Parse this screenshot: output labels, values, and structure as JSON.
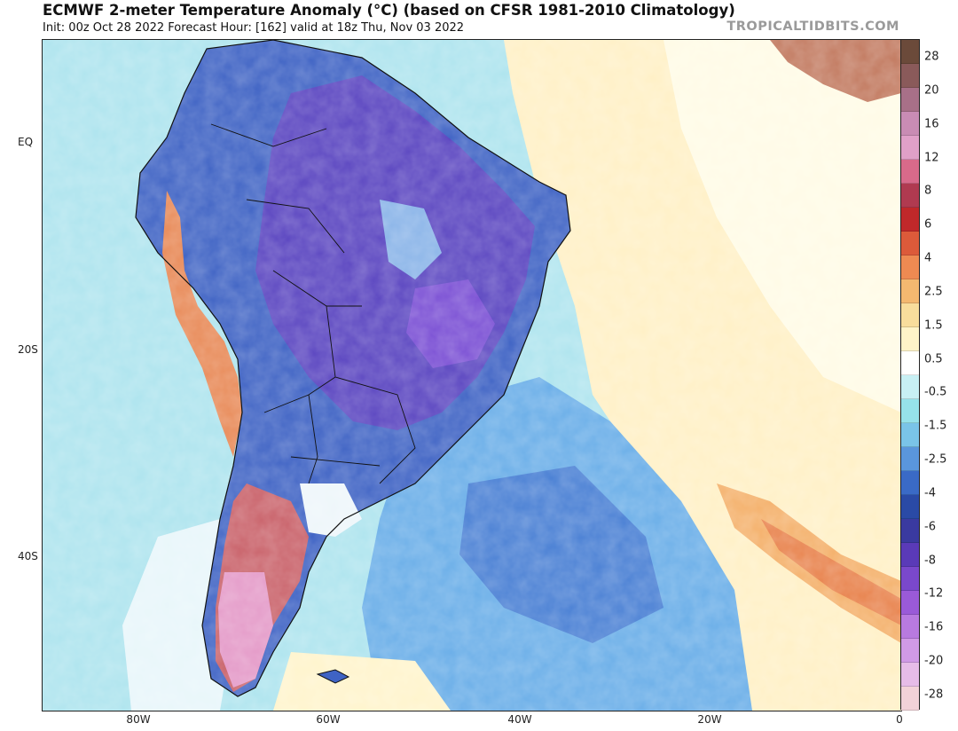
{
  "header": {
    "title": "ECMWF 2-meter Temperature Anomaly (°C) (based on CFSR 1981-2010 Climatology)",
    "subtitle": "Init: 00z Oct 28 2022   Forecast Hour: [162]   valid at 18z Thu, Nov 03 2022",
    "brand": "TROPICALTIDBITS.COM"
  },
  "axes": {
    "lat_labels": [
      "EQ",
      "20S",
      "40S"
    ],
    "lon_labels": [
      "80W",
      "60W",
      "40W",
      "20W",
      "0"
    ]
  },
  "colorbar": {
    "labels": [
      "28",
      "20",
      "16",
      "12",
      "8",
      "6",
      "4",
      "2.5",
      "1.5",
      "0.5",
      "-0.5",
      "-1.5",
      "-2.5",
      "-4",
      "-6",
      "-8",
      "-12",
      "-16",
      "-20",
      "-28"
    ],
    "colors": [
      "#6b4a3a",
      "#8a5a5a",
      "#a87088",
      "#c98cb4",
      "#e0a0c8",
      "#d86a8a",
      "#b03a50",
      "#c0282a",
      "#dc5a3a",
      "#ee8a52",
      "#f4b870",
      "#f8dd9c",
      "#fff4c8",
      "#ffffff",
      "#c8f0f4",
      "#96e2ea",
      "#7ac4e8",
      "#5a96dc",
      "#3a6ac6",
      "#2a4aa6",
      "#3a3aa0",
      "#5a3ab8",
      "#7a48cc",
      "#9a5ad8",
      "#b87ae0",
      "#d09ae6",
      "#e6bce8",
      "#f2d2d8"
    ]
  }
}
